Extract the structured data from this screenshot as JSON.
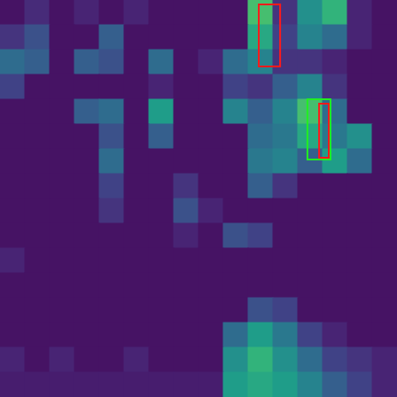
{
  "chart_data": {
    "type": "heatmap",
    "xlim": [
      0,
      16
    ],
    "ylim": [
      0,
      16
    ],
    "tick_labels": false,
    "grid": false,
    "color_range": [
      0,
      1
    ],
    "cells": [
      [
        0.05,
        0.12,
        0.05,
        0.1,
        0.05,
        0.1,
        0.05,
        0.05,
        0.05,
        0.05,
        0.7,
        0.15,
        0.5,
        0.65,
        0.1,
        0.05
      ],
      [
        0.15,
        0.25,
        0.05,
        0.05,
        0.3,
        0.05,
        0.05,
        0.05,
        0.05,
        0.05,
        0.6,
        0.2,
        0.45,
        0.35,
        0.1,
        0.05
      ],
      [
        0.35,
        0.3,
        0.05,
        0.3,
        0.25,
        0.05,
        0.35,
        0.05,
        0.1,
        0.35,
        0.45,
        0.15,
        0.15,
        0.1,
        0.05,
        0.05
      ],
      [
        0.2,
        0.05,
        0.05,
        0.05,
        0.05,
        0.05,
        0.1,
        0.05,
        0.05,
        0.2,
        0.15,
        0.3,
        0.45,
        0.15,
        0.05,
        0.05
      ],
      [
        0.05,
        0.05,
        0.05,
        0.3,
        0.35,
        0.05,
        0.55,
        0.05,
        0.05,
        0.45,
        0.3,
        0.45,
        0.7,
        0.35,
        0.05,
        0.05
      ],
      [
        0.05,
        0.05,
        0.05,
        0.05,
        0.25,
        0.05,
        0.3,
        0.05,
        0.05,
        0.05,
        0.35,
        0.4,
        0.6,
        0.4,
        0.5,
        0.05
      ],
      [
        0.05,
        0.05,
        0.05,
        0.05,
        0.35,
        0.05,
        0.05,
        0.05,
        0.05,
        0.05,
        0.4,
        0.45,
        0.3,
        0.55,
        0.35,
        0.05
      ],
      [
        0.05,
        0.05,
        0.05,
        0.05,
        0.2,
        0.05,
        0.05,
        0.15,
        0.05,
        0.05,
        0.3,
        0.15,
        0.05,
        0.05,
        0.05,
        0.05
      ],
      [
        0.05,
        0.05,
        0.05,
        0.05,
        0.15,
        0.05,
        0.05,
        0.25,
        0.1,
        0.05,
        0.05,
        0.05,
        0.05,
        0.05,
        0.05,
        0.05
      ],
      [
        0.05,
        0.05,
        0.05,
        0.05,
        0.05,
        0.05,
        0.05,
        0.1,
        0.05,
        0.25,
        0.2,
        0.05,
        0.05,
        0.05,
        0.05,
        0.05
      ],
      [
        0.1,
        0.05,
        0.05,
        0.05,
        0.05,
        0.05,
        0.05,
        0.05,
        0.05,
        0.05,
        0.05,
        0.05,
        0.05,
        0.05,
        0.05,
        0.05
      ],
      [
        0.05,
        0.05,
        0.05,
        0.05,
        0.05,
        0.05,
        0.05,
        0.05,
        0.05,
        0.05,
        0.05,
        0.05,
        0.05,
        0.05,
        0.05,
        0.05
      ],
      [
        0.05,
        0.05,
        0.05,
        0.05,
        0.05,
        0.05,
        0.05,
        0.05,
        0.05,
        0.05,
        0.25,
        0.2,
        0.05,
        0.05,
        0.05,
        0.05
      ],
      [
        0.05,
        0.05,
        0.05,
        0.05,
        0.05,
        0.05,
        0.05,
        0.05,
        0.05,
        0.35,
        0.55,
        0.4,
        0.2,
        0.1,
        0.05,
        0.05
      ],
      [
        0.1,
        0.05,
        0.1,
        0.05,
        0.05,
        0.1,
        0.05,
        0.05,
        0.05,
        0.5,
        0.65,
        0.5,
        0.35,
        0.2,
        0.15,
        0.1
      ],
      [
        0.08,
        0.08,
        0.08,
        0.08,
        0.08,
        0.08,
        0.08,
        0.08,
        0.08,
        0.55,
        0.6,
        0.55,
        0.45,
        0.3,
        0.2,
        0.1
      ]
    ],
    "boxes": [
      {
        "x": [
          10.43,
          11.29
        ],
        "y": [
          0.18,
          2.68
        ],
        "color": "#ff1a1a"
      },
      {
        "x": [
          12.39,
          13.32
        ],
        "y": [
          4.0,
          6.43
        ],
        "color": "#22ee22"
      },
      {
        "x": [
          12.86,
          13.25
        ],
        "y": [
          4.18,
          6.36
        ],
        "color": "#ff1a1a"
      }
    ]
  }
}
